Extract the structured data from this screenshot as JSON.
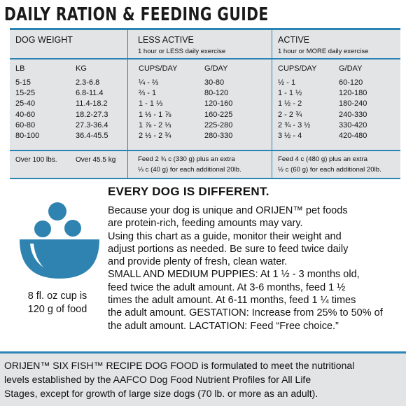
{
  "title": "DAILY RATION & FEEDING GUIDE",
  "table": {
    "groups": {
      "weight": "DOG WEIGHT",
      "less_active": "LESS ACTIVE",
      "less_active_sub": "1 hour or LESS daily exercise",
      "active": "ACTIVE",
      "active_sub": "1 hour or MORE daily exercise"
    },
    "columns": [
      "LB",
      "KG",
      "CUPS/DAY",
      "G/DAY",
      "CUPS/DAY",
      "G/DAY"
    ],
    "rows": [
      [
        "5-15",
        "2.3-6.8",
        "¼ - ⅔",
        "30-80",
        "½ - 1",
        "60-120"
      ],
      [
        "15-25",
        "6.8-11.4",
        "⅔ - 1",
        "80-120",
        "1 - 1 ½",
        "120-180"
      ],
      [
        "25-40",
        "11.4-18.2",
        "1 - 1 ⅓",
        "120-160",
        "1 ½ - 2",
        "180-240"
      ],
      [
        "40-60",
        "18.2-27.3",
        "1 ⅓ - 1 ⅞",
        "160-225",
        "2 - 2 ¾",
        "240-330"
      ],
      [
        "60-80",
        "27.3-36.4",
        "1 ⅞ - 2 ⅓",
        "225-280",
        "2 ¾ - 3 ½",
        "330-420"
      ],
      [
        "80-100",
        "36.4-45.5",
        "2 ⅓ - 2 ¾",
        "280-330",
        "3 ½ - 4",
        "420-480"
      ]
    ],
    "over": {
      "lb": "Over 100 lbs.",
      "kg": "Over 45.5 kg",
      "less_note": "Feed 2 ¾ c (330 g) plus an extra\n⅓ c (40 g) for each additional 20lb.",
      "active_note": "Feed 4 c (480 g) plus an extra\n½ c (60 g) for each additional 20lb."
    }
  },
  "cup": {
    "caption_line1": "8 fl. oz cup is",
    "caption_line2": "120 g of food",
    "color": "#2f83b0"
  },
  "every_dog": {
    "heading": "EVERY DOG IS DIFFERENT.",
    "lines": [
      "Because your dog is unique and ORIJEN™ pet foods",
      "are protein-rich, feeding amounts may vary.",
      "Using this chart as a guide, monitor their weight and",
      "adjust portions as needed. Be sure to feed twice daily",
      "and provide plenty of fresh, clean water.",
      "SMALL AND MEDIUM PUPPIES: At 1 ½ - 3 months old,",
      "feed twice the adult amount. At 3-6 months, feed 1 ½",
      "times the adult amount. At 6-11 months, feed 1 ¼  times",
      "the adult amount. GESTATION: Increase from 25% to 50% of",
      "the adult amount. LACTATION: Feed “Free choice.”"
    ]
  },
  "aafco": {
    "lines": [
      "ORIJEN™ SIX FISH™ RECIPE DOG FOOD is formulated to meet the nutritional",
      "levels established by the AAFCO Dog Food Nutrient Profiles for All Life",
      "Stages, except for growth of large size dogs (70 lb. or more as an adult)."
    ]
  },
  "colors": {
    "accent": "#2b85b4",
    "panel": "#e3e4e6"
  }
}
